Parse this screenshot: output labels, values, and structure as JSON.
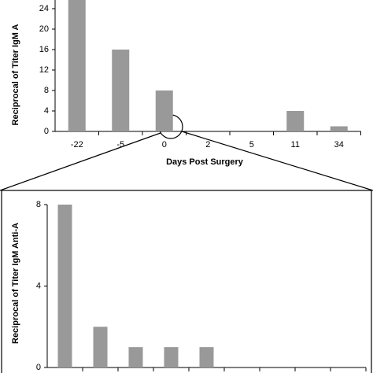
{
  "chart_data": [
    {
      "type": "bar",
      "y_label": "Reciprocal of Titer IgM A",
      "x_label": "Days Post Surgery",
      "categories": [
        "-22",
        "-5",
        "0",
        "2",
        "5",
        "11",
        "34"
      ],
      "values": [
        26,
        16,
        8,
        0,
        0,
        4,
        1
      ],
      "color": "#999999",
      "ylim": [
        0,
        25.7
      ],
      "yticks": [
        0,
        4,
        8,
        12,
        16,
        20,
        24
      ]
    },
    {
      "type": "bar",
      "y_label": "Reciprocal of Titer IgM Anti-A",
      "categories": [
        null,
        null,
        null,
        null,
        null,
        null,
        null,
        null,
        null
      ],
      "values": [
        8,
        2,
        1,
        1,
        1,
        0,
        0,
        0,
        0
      ],
      "color": "#999999",
      "ylim": [
        0,
        8
      ],
      "yticks": [
        0,
        4,
        8
      ]
    }
  ]
}
